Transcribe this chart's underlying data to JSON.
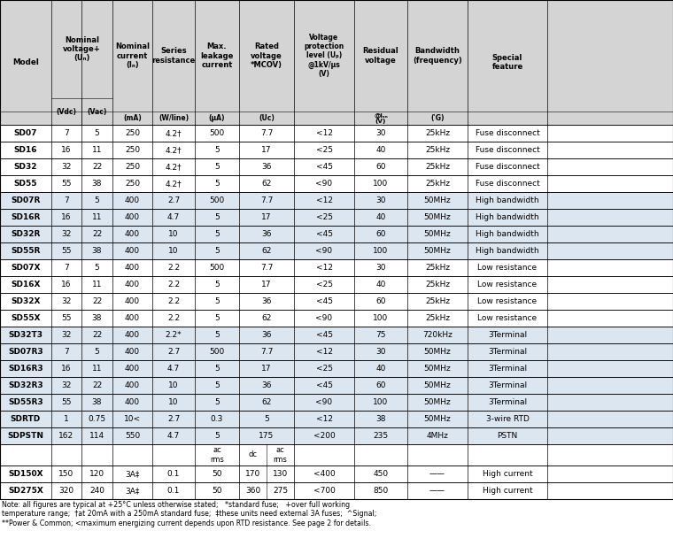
{
  "rows": [
    [
      "SD07",
      "7",
      "5",
      "250",
      "4.2†",
      "500",
      "7.7",
      "<12",
      "30",
      "25kHz",
      "Fuse disconnect"
    ],
    [
      "SD16",
      "16",
      "11",
      "250",
      "4.2†",
      "5",
      "17",
      "<25",
      "40",
      "25kHz",
      "Fuse disconnect"
    ],
    [
      "SD32",
      "32",
      "22",
      "250",
      "4.2†",
      "5",
      "36",
      "<45",
      "60",
      "25kHz",
      "Fuse disconnect"
    ],
    [
      "SD55",
      "55",
      "38",
      "250",
      "4.2†",
      "5",
      "62",
      "<90",
      "100",
      "25kHz",
      "Fuse disconnect"
    ],
    [
      "SD07R",
      "7",
      "5",
      "400",
      "2.7",
      "500",
      "7.7",
      "<12",
      "30",
      "50MHz",
      "High bandwidth"
    ],
    [
      "SD16R",
      "16",
      "11",
      "400",
      "4.7",
      "5",
      "17",
      "<25",
      "40",
      "50MHz",
      "High bandwidth"
    ],
    [
      "SD32R",
      "32",
      "22",
      "400",
      "10",
      "5",
      "36",
      "<45",
      "60",
      "50MHz",
      "High bandwidth"
    ],
    [
      "SD55R",
      "55",
      "38",
      "400",
      "10",
      "5",
      "62",
      "<90",
      "100",
      "50MHz",
      "High bandwidth"
    ],
    [
      "SD07X",
      "7",
      "5",
      "400",
      "2.2",
      "500",
      "7.7",
      "<12",
      "30",
      "25kHz",
      "Low resistance"
    ],
    [
      "SD16X",
      "16",
      "11",
      "400",
      "2.2",
      "5",
      "17",
      "<25",
      "40",
      "25kHz",
      "Low resistance"
    ],
    [
      "SD32X",
      "32",
      "22",
      "400",
      "2.2",
      "5",
      "36",
      "<45",
      "60",
      "25kHz",
      "Low resistance"
    ],
    [
      "SD55X",
      "55",
      "38",
      "400",
      "2.2",
      "5",
      "62",
      "<90",
      "100",
      "25kHz",
      "Low resistance"
    ],
    [
      "SD32T3",
      "32",
      "22",
      "400",
      "2.2*",
      "5",
      "36",
      "<45",
      "75",
      "720kHz",
      "3Terminal"
    ],
    [
      "SD07R3",
      "7",
      "5",
      "400",
      "2.7",
      "500",
      "7.7",
      "<12",
      "30",
      "50MHz",
      "3Terminal"
    ],
    [
      "SD16R3",
      "16",
      "11",
      "400",
      "4.7",
      "5",
      "17",
      "<25",
      "40",
      "50MHz",
      "3Terminal"
    ],
    [
      "SD32R3",
      "32",
      "22",
      "400",
      "10",
      "5",
      "36",
      "<45",
      "60",
      "50MHz",
      "3Terminal"
    ],
    [
      "SD55R3",
      "55",
      "38",
      "400",
      "10",
      "5",
      "62",
      "<90",
      "100",
      "50MHz",
      "3Terminal"
    ],
    [
      "SDRTD",
      "1",
      "0.75",
      "10<",
      "2.7",
      "0.3",
      "5",
      "<12",
      "38",
      "50MHz",
      "3-wire RTD"
    ],
    [
      "SDPSTN",
      "162",
      "114",
      "550",
      "4.7",
      "5",
      "175",
      "<200",
      "235",
      "4MHz",
      "PSTN"
    ]
  ],
  "rows_bottom": [
    [
      "SD150X",
      "150",
      "120",
      "3A‡",
      "0.1",
      "50",
      "170",
      "130",
      "<400",
      "450",
      "——",
      "High current"
    ],
    [
      "SD275X",
      "320",
      "240",
      "3A‡",
      "0.1",
      "50",
      "360",
      "275",
      "<700",
      "850",
      "——",
      "High current"
    ]
  ],
  "row_bgs": [
    "#ffffff",
    "#ffffff",
    "#ffffff",
    "#ffffff",
    "#dce6f1",
    "#dce6f1",
    "#dce6f1",
    "#dce6f1",
    "#ffffff",
    "#ffffff",
    "#ffffff",
    "#ffffff",
    "#dce6f1",
    "#dce6f1",
    "#dce6f1",
    "#dce6f1",
    "#dce6f1",
    "#dce6f1",
    "#dce6f1"
  ],
  "note": "Note: all figures are typical at +25°C unless otherwise stated;   *standard fuse;   +over full working\ntemperature range;  †at 20mA with a 250mA standard fuse;  ‡these units need external 3A fuses;  ^Signal;\n**Power & Common; <maximum energizing current depends upon RTD resistance. See page 2 for details.",
  "bg_header": "#d4d4d4",
  "bg_white": "#ffffff",
  "bg_blue": "#dce6f1",
  "col_edges": [
    0,
    58,
    92,
    127,
    172,
    220,
    270,
    332,
    400,
    460,
    528,
    618,
    760
  ]
}
